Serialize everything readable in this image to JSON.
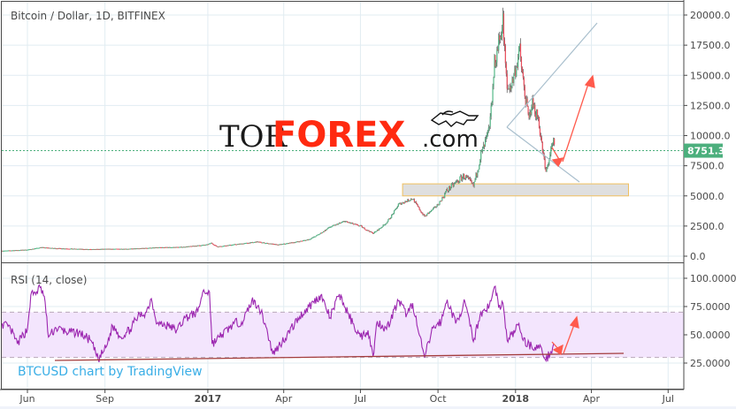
{
  "header": {
    "title": "Bitcoin / Dollar, 1D, BITFINEX"
  },
  "logo": {
    "tor": "TOR",
    "forex": "FOREX",
    "com": ".com"
  },
  "watermark": "BTCUSD chart by TradingView",
  "colors": {
    "up": "#53b987",
    "down": "#eb4d5c",
    "rsi": "#9c27b0",
    "rsi_band": "#f3e5fd",
    "last_price": "#4caf7d",
    "annotation_arrow": "#ff5a4c",
    "trendline": "#a33c3c",
    "triangle": "#a9bfcd",
    "support_zone_border": "#f0c060"
  },
  "chart_data": [
    {
      "type": "candlestick",
      "title": "Bitcoin / Dollar, 1D, BITFINEX",
      "ylim": [
        0,
        20500
      ],
      "yticks": [
        "0.0",
        "2500.0",
        "5000.0",
        "7500.0",
        "10000.0",
        "12500.0",
        "15000.0",
        "17500.0",
        "20000.0"
      ],
      "last_price": "8751.3",
      "xticks": [
        {
          "label": "Jun",
          "date": "2016-06-01",
          "bold": false
        },
        {
          "label": "Sep",
          "date": "2016-09-01",
          "bold": false
        },
        {
          "label": "2017",
          "date": "2017-01-01",
          "bold": true
        },
        {
          "label": "Apr",
          "date": "2017-04-01",
          "bold": false
        },
        {
          "label": "Jul",
          "date": "2017-07-01",
          "bold": false
        },
        {
          "label": "Oct",
          "date": "2017-10-01",
          "bold": false
        },
        {
          "label": "2018",
          "date": "2018-01-01",
          "bold": true
        },
        {
          "label": "Apr",
          "date": "2018-04-01",
          "bold": false
        },
        {
          "label": "Jul",
          "date": "2018-07-01",
          "bold": false
        }
      ],
      "close_path": [
        [
          "2016-05-02",
          450
        ],
        [
          "2016-06-01",
          540
        ],
        [
          "2016-06-17",
          740
        ],
        [
          "2016-07-01",
          670
        ],
        [
          "2016-08-01",
          600
        ],
        [
          "2016-08-15",
          570
        ],
        [
          "2016-09-01",
          600
        ],
        [
          "2016-10-01",
          615
        ],
        [
          "2016-11-01",
          720
        ],
        [
          "2016-12-01",
          760
        ],
        [
          "2016-12-31",
          960
        ],
        [
          "2017-01-05",
          1100
        ],
        [
          "2017-01-12",
          800
        ],
        [
          "2017-02-01",
          970
        ],
        [
          "2017-03-01",
          1200
        ],
        [
          "2017-03-25",
          950
        ],
        [
          "2017-04-15",
          1180
        ],
        [
          "2017-05-01",
          1400
        ],
        [
          "2017-05-25",
          2400
        ],
        [
          "2017-06-12",
          2900
        ],
        [
          "2017-07-01",
          2500
        ],
        [
          "2017-07-16",
          1900
        ],
        [
          "2017-08-01",
          2800
        ],
        [
          "2017-08-15",
          4300
        ],
        [
          "2017-09-01",
          4800
        ],
        [
          "2017-09-15",
          3300
        ],
        [
          "2017-10-01",
          4300
        ],
        [
          "2017-10-12",
          5500
        ],
        [
          "2017-11-01",
          6700
        ],
        [
          "2017-11-12",
          5800
        ],
        [
          "2017-11-20",
          8200
        ],
        [
          "2017-12-01",
          10500
        ],
        [
          "2017-12-07",
          16000
        ],
        [
          "2017-12-17",
          19500
        ],
        [
          "2017-12-22",
          13800
        ],
        [
          "2017-12-28",
          14400
        ],
        [
          "2018-01-06",
          17100
        ],
        [
          "2018-01-10",
          14500
        ],
        [
          "2018-01-17",
          11200
        ],
        [
          "2018-01-20",
          12800
        ],
        [
          "2018-01-28",
          11500
        ],
        [
          "2018-02-02",
          8800
        ],
        [
          "2018-02-06",
          6900
        ],
        [
          "2018-02-10",
          8200
        ],
        [
          "2018-02-15",
          9500
        ],
        [
          "2018-02-17",
          8751
        ]
      ],
      "annotations": {
        "support_zone": [
          5000,
          6000
        ],
        "support_zone_dates": [
          "2017-08-20",
          "2018-05-15"
        ]
      }
    },
    {
      "type": "line",
      "title": "RSI (14, close)",
      "ylim": [
        0,
        110
      ],
      "yticks": [
        "25.0000",
        "50.0000",
        "75.0000",
        "100.0000"
      ],
      "bands": [
        30,
        70
      ],
      "series": [
        {
          "name": "RSI (14, close)",
          "points": [
            [
              "2016-05-02",
              60
            ],
            [
              "2016-05-12",
              55
            ],
            [
              "2016-05-20",
              42
            ],
            [
              "2016-06-01",
              55
            ],
            [
              "2016-06-05",
              85
            ],
            [
              "2016-06-12",
              88
            ],
            [
              "2016-06-16",
              92
            ],
            [
              "2016-06-21",
              84
            ],
            [
              "2016-06-26",
              48
            ],
            [
              "2016-07-05",
              56
            ],
            [
              "2016-07-20",
              52
            ],
            [
              "2016-08-01",
              52
            ],
            [
              "2016-08-15",
              45
            ],
            [
              "2016-08-24",
              28
            ],
            [
              "2016-09-03",
              40
            ],
            [
              "2016-09-10",
              58
            ],
            [
              "2016-09-20",
              48
            ],
            [
              "2016-10-01",
              55
            ],
            [
              "2016-10-10",
              66
            ],
            [
              "2016-10-20",
              70
            ],
            [
              "2016-10-26",
              82
            ],
            [
              "2016-11-02",
              60
            ],
            [
              "2016-11-15",
              58
            ],
            [
              "2016-11-25",
              54
            ],
            [
              "2016-12-05",
              65
            ],
            [
              "2016-12-20",
              70
            ],
            [
              "2016-12-26",
              88
            ],
            [
              "2017-01-03",
              88
            ],
            [
              "2017-01-06",
              42
            ],
            [
              "2017-01-15",
              48
            ],
            [
              "2017-02-01",
              60
            ],
            [
              "2017-02-12",
              62
            ],
            [
              "2017-02-22",
              80
            ],
            [
              "2017-03-02",
              76
            ],
            [
              "2017-03-10",
              60
            ],
            [
              "2017-03-19",
              33
            ],
            [
              "2017-03-26",
              40
            ],
            [
              "2017-04-05",
              50
            ],
            [
              "2017-04-20",
              66
            ],
            [
              "2017-05-01",
              75
            ],
            [
              "2017-05-15",
              85
            ],
            [
              "2017-05-26",
              65
            ],
            [
              "2017-06-06",
              86
            ],
            [
              "2017-06-13",
              74
            ],
            [
              "2017-06-22",
              60
            ],
            [
              "2017-07-01",
              48
            ],
            [
              "2017-07-10",
              54
            ],
            [
              "2017-07-16",
              31
            ],
            [
              "2017-07-21",
              62
            ],
            [
              "2017-08-01",
              55
            ],
            [
              "2017-08-15",
              80
            ],
            [
              "2017-08-25",
              68
            ],
            [
              "2017-09-01",
              78
            ],
            [
              "2017-09-08",
              52
            ],
            [
              "2017-09-15",
              30
            ],
            [
              "2017-09-25",
              56
            ],
            [
              "2017-10-05",
              62
            ],
            [
              "2017-10-12",
              81
            ],
            [
              "2017-10-22",
              60
            ],
            [
              "2017-11-02",
              79
            ],
            [
              "2017-11-12",
              44
            ],
            [
              "2017-11-20",
              68
            ],
            [
              "2017-12-01",
              76
            ],
            [
              "2017-12-08",
              93
            ],
            [
              "2017-12-12",
              74
            ],
            [
              "2017-12-17",
              78
            ],
            [
              "2017-12-22",
              45
            ],
            [
              "2018-01-01",
              54
            ],
            [
              "2018-01-05",
              60
            ],
            [
              "2018-01-10",
              45
            ],
            [
              "2018-01-20",
              40
            ],
            [
              "2018-02-01",
              38
            ],
            [
              "2018-02-06",
              27
            ],
            [
              "2018-02-16",
              42
            ]
          ]
        }
      ]
    }
  ]
}
